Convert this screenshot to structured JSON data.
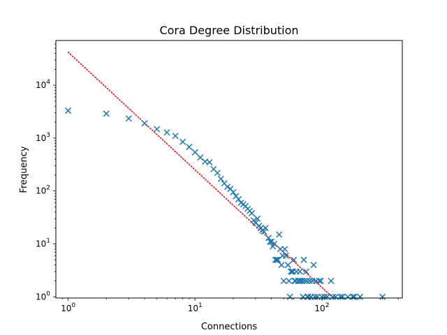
{
  "chart_data": {
    "type": "scatter",
    "title": "Cora Degree Distribution",
    "xlabel": "Connections",
    "ylabel": "Frequency",
    "xscale": "log",
    "yscale": "log",
    "xlim": [
      0.8,
      430
    ],
    "ylim": [
      0.95,
      70000
    ],
    "grid": false,
    "x_ticks": [
      {
        "value": 1,
        "label": "10",
        "exp": "0"
      },
      {
        "value": 10,
        "label": "10",
        "exp": "1"
      },
      {
        "value": 100,
        "label": "10",
        "exp": "2"
      }
    ],
    "y_ticks": [
      {
        "value": 1,
        "label": "10",
        "exp": "0"
      },
      {
        "value": 10,
        "label": "10",
        "exp": "1"
      },
      {
        "value": 100,
        "label": "10",
        "exp": "2"
      },
      {
        "value": 1000,
        "label": "10",
        "exp": "3"
      },
      {
        "value": 10000,
        "label": "10",
        "exp": "4"
      }
    ],
    "marker_color": "#1f77b4",
    "fit_color": "#ff0000",
    "series": [
      {
        "marker": "x",
        "points": [
          [
            1,
            3300
          ],
          [
            2,
            2900
          ],
          [
            3,
            2350
          ],
          [
            4,
            1900
          ],
          [
            5,
            1480
          ],
          [
            6,
            1280
          ],
          [
            7,
            1100
          ],
          [
            8,
            850
          ],
          [
            9,
            680
          ],
          [
            10,
            540
          ],
          [
            11,
            430
          ],
          [
            12,
            360
          ],
          [
            13,
            350
          ],
          [
            14,
            260
          ],
          [
            15,
            220
          ],
          [
            16,
            170
          ],
          [
            17,
            140
          ],
          [
            18,
            120
          ],
          [
            19,
            110
          ],
          [
            20,
            95
          ],
          [
            21,
            80
          ],
          [
            22,
            70
          ],
          [
            23,
            60
          ],
          [
            24,
            56
          ],
          [
            25,
            52
          ],
          [
            26,
            46
          ],
          [
            27,
            42
          ],
          [
            28,
            38
          ],
          [
            29,
            28
          ],
          [
            30,
            25
          ],
          [
            31,
            30
          ],
          [
            32,
            22
          ],
          [
            33,
            20
          ],
          [
            34,
            18
          ],
          [
            35,
            17
          ],
          [
            36,
            20
          ],
          [
            38,
            13
          ],
          [
            39,
            11
          ],
          [
            40,
            11
          ],
          [
            41,
            9
          ],
          [
            42,
            10
          ],
          [
            43,
            5
          ],
          [
            44,
            5
          ],
          [
            45,
            5
          ],
          [
            46,
            15
          ],
          [
            47,
            8
          ],
          [
            48,
            4
          ],
          [
            49,
            6
          ],
          [
            50,
            2
          ],
          [
            51,
            8
          ],
          [
            52,
            6
          ],
          [
            54,
            4
          ],
          [
            55,
            2
          ],
          [
            56,
            1
          ],
          [
            57,
            3
          ],
          [
            58,
            3
          ],
          [
            59,
            3
          ],
          [
            60,
            5
          ],
          [
            61,
            2
          ],
          [
            62,
            2
          ],
          [
            63,
            3
          ],
          [
            65,
            2
          ],
          [
            66,
            2
          ],
          [
            67,
            3
          ],
          [
            68,
            2
          ],
          [
            70,
            2
          ],
          [
            71,
            1
          ],
          [
            72,
            5
          ],
          [
            73,
            2
          ],
          [
            75,
            3
          ],
          [
            76,
            2
          ],
          [
            77,
            1
          ],
          [
            78,
            1
          ],
          [
            80,
            2
          ],
          [
            82,
            1
          ],
          [
            84,
            2
          ],
          [
            86,
            4
          ],
          [
            88,
            1
          ],
          [
            90,
            2
          ],
          [
            92,
            1
          ],
          [
            95,
            2
          ],
          [
            98,
            2
          ],
          [
            100,
            1
          ],
          [
            105,
            1
          ],
          [
            110,
            1
          ],
          [
            118,
            2
          ],
          [
            122,
            1
          ],
          [
            128,
            1
          ],
          [
            140,
            1
          ],
          [
            145,
            1
          ],
          [
            160,
            1
          ],
          [
            175,
            1
          ],
          [
            180,
            1
          ],
          [
            200,
            1
          ],
          [
            300,
            1
          ]
        ]
      },
      {
        "marker": "dotted-line",
        "points": [
          [
            1,
            42000
          ],
          [
            120,
            1
          ]
        ]
      }
    ]
  }
}
